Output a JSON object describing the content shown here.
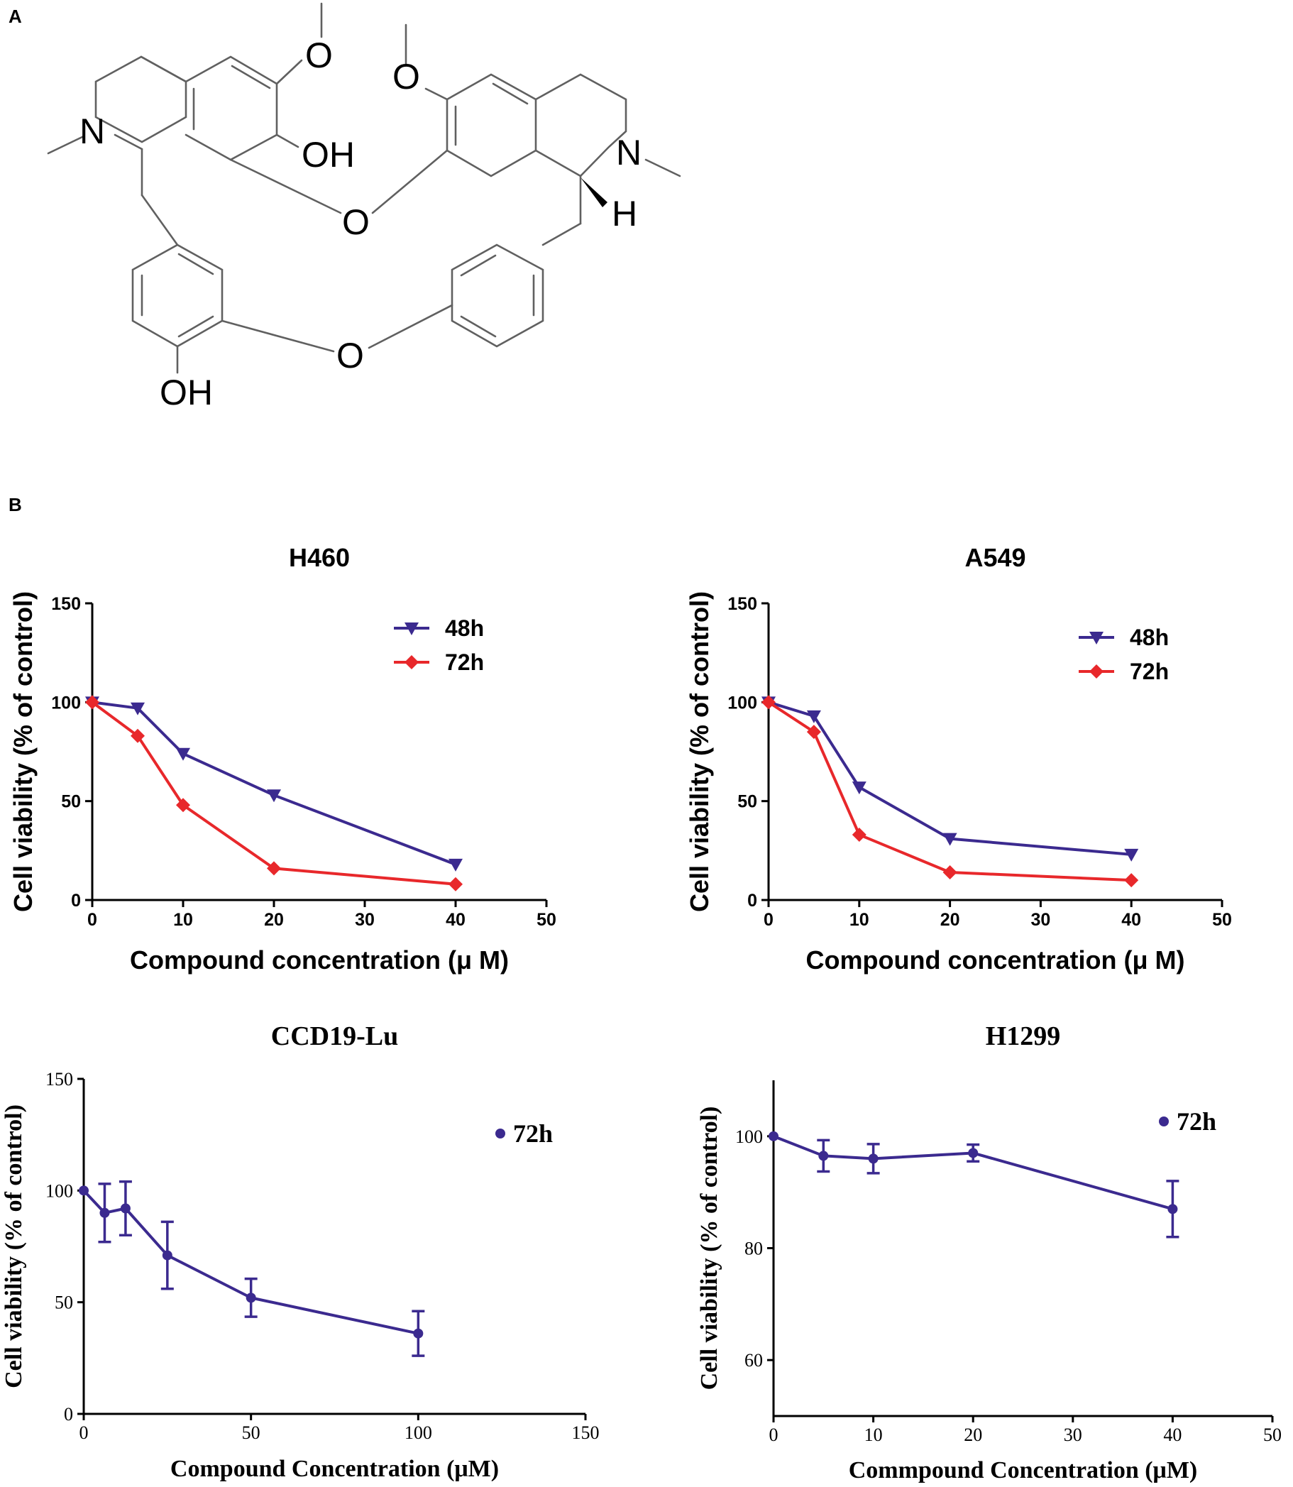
{
  "panels": {
    "a": "A",
    "b": "B"
  },
  "molecule": {
    "atoms": {
      "n_left": "N",
      "n_right": "N",
      "oh_top": "OH",
      "oh_bottom": "OH",
      "o_methoxy_left": "O",
      "o_methoxy_right": "O",
      "o_bridge_top": "O",
      "o_bridge_bottom": "O",
      "h_stereo": "H"
    }
  },
  "colors": {
    "series48h": "#3b2a8f",
    "series72h": "#e8282b",
    "ccd": "#3b2a8f"
  },
  "chart_data": [
    {
      "id": "h460",
      "type": "line",
      "title": "H460",
      "xlabel": "Compound concentration (μ  M)",
      "ylabel": "Cell viability (% of control)",
      "xlim": [
        0,
        50
      ],
      "ylim": [
        0,
        150
      ],
      "xticks": [
        "0",
        "10",
        "20",
        "30",
        "40",
        "50"
      ],
      "yticks": [
        "0",
        "50",
        "100",
        "150"
      ],
      "series": [
        {
          "name": "48h",
          "marker": "triangle-down",
          "x": [
            0,
            5,
            10,
            20,
            40
          ],
          "values": [
            100,
            97,
            74,
            53,
            18
          ]
        },
        {
          "name": "72h",
          "marker": "diamond",
          "x": [
            0,
            5,
            10,
            20,
            40
          ],
          "values": [
            100,
            83,
            48,
            16,
            8
          ]
        }
      ]
    },
    {
      "id": "a549",
      "type": "line",
      "title": "A549",
      "xlabel": "Compound concentration (μ  M)",
      "ylabel": "Cell viability (% of control)",
      "xlim": [
        0,
        50
      ],
      "ylim": [
        0,
        150
      ],
      "xticks": [
        "0",
        "10",
        "20",
        "30",
        "40",
        "50"
      ],
      "yticks": [
        "0",
        "50",
        "100",
        "150"
      ],
      "series": [
        {
          "name": "48h",
          "marker": "triangle-down",
          "x": [
            0,
            5,
            10,
            20,
            40
          ],
          "values": [
            100,
            93,
            57,
            31,
            23
          ]
        },
        {
          "name": "72h",
          "marker": "diamond",
          "x": [
            0,
            5,
            10,
            20,
            40
          ],
          "values": [
            100,
            85,
            33,
            14,
            10
          ]
        }
      ]
    },
    {
      "id": "ccd19",
      "type": "line",
      "title": "CCD19-Lu",
      "xlabel": "Compound Concentration (μM)",
      "ylabel": "Cell viability (% of control)",
      "xlim": [
        0,
        150
      ],
      "ylim": [
        0,
        150
      ],
      "xticks": [
        "0",
        "50",
        "100",
        "150"
      ],
      "yticks": [
        "0",
        "50",
        "100",
        "150"
      ],
      "series": [
        {
          "name": "72h",
          "marker": "circle",
          "x": [
            0,
            6.25,
            12.5,
            25,
            50,
            100
          ],
          "values": [
            100,
            90,
            92,
            71,
            52,
            36
          ],
          "errors": [
            0,
            13,
            12,
            15,
            8.5,
            10
          ]
        }
      ]
    },
    {
      "id": "h1299",
      "type": "line",
      "title": "H1299",
      "xlabel": "Commpound Concentration (μM)",
      "ylabel": "Cell viability (% of control)",
      "xlim": [
        0,
        50
      ],
      "ylim": [
        50,
        110
      ],
      "xticks": [
        "0",
        "10",
        "20",
        "30",
        "40",
        "50"
      ],
      "yticks": [
        "60",
        "80",
        "100"
      ],
      "series": [
        {
          "name": "72h",
          "marker": "circle",
          "x": [
            0,
            5,
            10,
            20,
            40
          ],
          "values": [
            100,
            96.5,
            96,
            97,
            87
          ],
          "errors": [
            0,
            2.8,
            2.6,
            1.5,
            5
          ]
        }
      ]
    }
  ]
}
